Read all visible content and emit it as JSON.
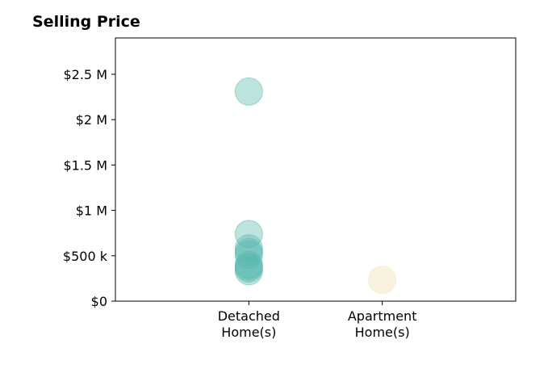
{
  "chart_data": {
    "type": "scatter",
    "title": "Selling Price",
    "xlabel": "",
    "ylabel": "",
    "categories": [
      "Detached\nHome(s)",
      "Apartment\nHome(s)"
    ],
    "xlim": [
      0,
      3
    ],
    "ylim": [
      0,
      2900000
    ],
    "yticks": [
      0,
      500000,
      1000000,
      1500000,
      2000000,
      2500000
    ],
    "ytick_labels": [
      "$0",
      "$500 k",
      "$1 M",
      "$1.5 M",
      "$2 M",
      "$2.5 M"
    ],
    "grid": false,
    "legend": false,
    "series": [
      {
        "category": "Detached\nHome(s)",
        "color": "#5bb8b0",
        "values": [
          2310000,
          740000,
          580000,
          540000,
          510000,
          400000,
          380000,
          360000,
          330000
        ]
      },
      {
        "category": "Apartment\nHome(s)",
        "color": "#f3dfb5",
        "values": [
          235000
        ]
      }
    ]
  }
}
